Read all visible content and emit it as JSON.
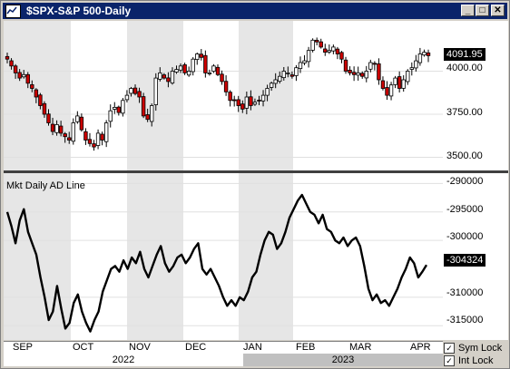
{
  "window": {
    "title": "$SPX-S&P 500-Daily",
    "buttons": [
      "_",
      "□",
      "✕"
    ]
  },
  "price_panel": {
    "y_ticks": [
      "4000.00",
      "3750.00",
      "3500.00"
    ],
    "last_price": "4091.95"
  },
  "indicator_panel": {
    "label": "Mkt Daily AD Line",
    "y_ticks": [
      "-290000",
      "-295000",
      "-300000",
      "-310000",
      "-315000"
    ],
    "last_value": "-304324"
  },
  "x_axis": {
    "months": [
      "SEP",
      "OCT",
      "NOV",
      "DEC",
      "JAN",
      "FEB",
      "MAR",
      "APR"
    ],
    "years": [
      "2022",
      "2023"
    ]
  },
  "options": {
    "sym_lock": "Sym Lock",
    "int_lock": "Int Lock"
  },
  "colors": {
    "title_bg": "#0a246a",
    "up_candle": "#ffffff",
    "down_candle": "#cc0000",
    "shade": "#e6e6e6"
  },
  "chart_data": [
    {
      "type": "candlestick",
      "title": "$SPX-S&P 500-Daily",
      "ylim": [
        3450,
        4250
      ],
      "y_ticks": [
        3500,
        3750,
        4000
      ],
      "last_value": 4091.95,
      "close_approx": [
        4070,
        4030,
        3990,
        3960,
        3980,
        3930,
        3900,
        3850,
        3800,
        3750,
        3700,
        3650,
        3690,
        3640,
        3620,
        3600,
        3700,
        3740,
        3660,
        3600,
        3580,
        3560,
        3640,
        3600,
        3700,
        3770,
        3790,
        3760,
        3830,
        3860,
        3900,
        3870,
        3850,
        3740,
        3720,
        3800,
        3960,
        3990,
        3960,
        3940,
        4000,
        4010,
        4030,
        3990,
        4000,
        4070,
        4100,
        4080,
        3990,
        3990,
        4030,
        3980,
        3940,
        3880,
        3830,
        3830,
        3800,
        3780,
        3850,
        3800,
        3820,
        3830,
        3860,
        3900,
        3930,
        3950,
        3970,
        4000,
        3990,
        3970,
        4020,
        4050,
        4060,
        4120,
        4180,
        4170,
        4140,
        4110,
        4120,
        4140,
        4100,
        4070,
        4000,
        3990,
        3980,
        3990,
        3970,
        4000,
        4050,
        4040,
        3950,
        3900,
        3860,
        3920,
        3960,
        3900,
        3950,
        4000,
        4020,
        4060,
        4100,
        4110,
        4090
      ]
    },
    {
      "type": "line",
      "title": "Mkt Daily AD Line",
      "ylim": [
        -317500,
        -288500
      ],
      "y_ticks": [
        -290000,
        -295000,
        -300000,
        -310000,
        -315000
      ],
      "last_value": -304324,
      "values_approx": [
        -295000,
        -297500,
        -300500,
        -296500,
        -294500,
        -298500,
        -300500,
        -302500,
        -306500,
        -310000,
        -314000,
        -312500,
        -308000,
        -312000,
        -315500,
        -314500,
        -311000,
        -309500,
        -312500,
        -314500,
        -316000,
        -314000,
        -312500,
        -309000,
        -307000,
        -305000,
        -304500,
        -305500,
        -303500,
        -305000,
        -303000,
        -304000,
        -302000,
        -305000,
        -306500,
        -304500,
        -302500,
        -301000,
        -304000,
        -305500,
        -304500,
        -303000,
        -302500,
        -304000,
        -303000,
        -301500,
        -300500,
        -305000,
        -306000,
        -305000,
        -306500,
        -308000,
        -310000,
        -311500,
        -310500,
        -311500,
        -310000,
        -310500,
        -309000,
        -306500,
        -305500,
        -302500,
        -300000,
        -298500,
        -299000,
        -301500,
        -300500,
        -298500,
        -296000,
        -294500,
        -293000,
        -292000,
        -293500,
        -295000,
        -295500,
        -297000,
        -295500,
        -298000,
        -298500,
        -300000,
        -300500,
        -299500,
        -301000,
        -300000,
        -299500,
        -301000,
        -304500,
        -308500,
        -310500,
        -309500,
        -311000,
        -310500,
        -311500,
        -310000,
        -308500,
        -306500,
        -305000,
        -303000,
        -304000,
        -306500,
        -305500,
        -304324
      ]
    }
  ]
}
